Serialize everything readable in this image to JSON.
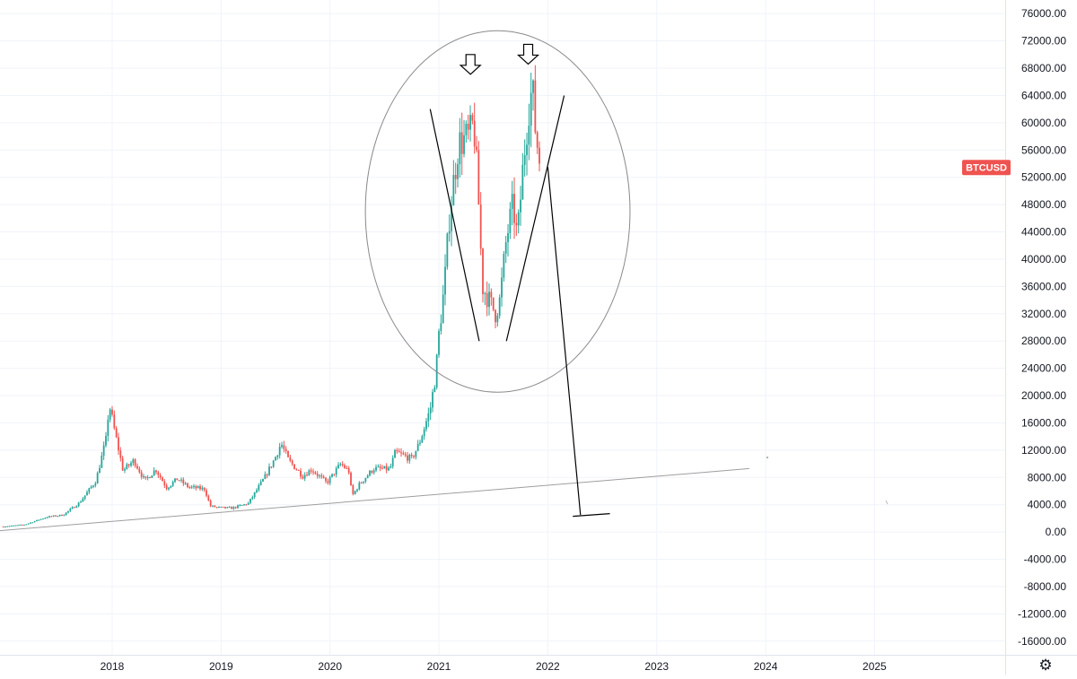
{
  "symbol_badge": {
    "label": "BTCUSD",
    "color": "#ef5350"
  },
  "settings_icon": "gear-icon",
  "colors": {
    "up": "#26a69a",
    "down": "#ef5350",
    "grid": "#f0f3fa",
    "drawing": "#000000",
    "trendline": "#9e9e9e",
    "ellipse": "#8a8a8a",
    "axis_text": "#131722"
  },
  "chart_data": {
    "type": "candlestick",
    "symbol": "BTCUSD",
    "timeframe": "weekly",
    "x_range": [
      2016.97,
      2026.2
    ],
    "y_range": [
      -18000,
      78000
    ],
    "x_ticks": [
      {
        "label": "2018",
        "value": 2018.0
      },
      {
        "label": "2019",
        "value": 2019.0
      },
      {
        "label": "2020",
        "value": 2020.0
      },
      {
        "label": "2021",
        "value": 2021.0
      },
      {
        "label": "2022",
        "value": 2022.0
      },
      {
        "label": "2023",
        "value": 2023.0
      },
      {
        "label": "2024",
        "value": 2024.0
      },
      {
        "label": "2025",
        "value": 2025.0
      }
    ],
    "y_ticks": [
      "76000.00",
      "72000.00",
      "68000.00",
      "64000.00",
      "60000.00",
      "56000.00",
      "52000.00",
      "48000.00",
      "44000.00",
      "40000.00",
      "36000.00",
      "32000.00",
      "28000.00",
      "24000.00",
      "20000.00",
      "16000.00",
      "12000.00",
      "8000.00",
      "4000.00",
      "0.00",
      "-4000.00",
      "-8000.00",
      "-12000.00",
      "-16000.00"
    ],
    "y_tick_values": [
      76000,
      72000,
      68000,
      64000,
      60000,
      56000,
      52000,
      48000,
      44000,
      40000,
      36000,
      32000,
      28000,
      24000,
      20000,
      16000,
      12000,
      8000,
      4000,
      0,
      -4000,
      -8000,
      -12000,
      -16000
    ],
    "last_price": 53500,
    "anchors": [
      [
        2017.0,
        800
      ],
      [
        2017.2,
        1100
      ],
      [
        2017.4,
        2200
      ],
      [
        2017.55,
        2500
      ],
      [
        2017.7,
        4300
      ],
      [
        2017.85,
        7500
      ],
      [
        2017.95,
        14000
      ],
      [
        2017.97,
        19000
      ],
      [
        2018.02,
        15000
      ],
      [
        2018.1,
        9000
      ],
      [
        2018.2,
        10500
      ],
      [
        2018.3,
        7500
      ],
      [
        2018.4,
        9200
      ],
      [
        2018.5,
        6500
      ],
      [
        2018.6,
        7800
      ],
      [
        2018.7,
        6600
      ],
      [
        2018.85,
        6300
      ],
      [
        2018.9,
        3800
      ],
      [
        2018.97,
        3600
      ],
      [
        2019.1,
        3500
      ],
      [
        2019.25,
        4200
      ],
      [
        2019.4,
        8000
      ],
      [
        2019.5,
        11000
      ],
      [
        2019.55,
        13000
      ],
      [
        2019.62,
        10500
      ],
      [
        2019.75,
        8200
      ],
      [
        2019.83,
        9200
      ],
      [
        2019.97,
        7200
      ],
      [
        2020.1,
        10000
      ],
      [
        2020.18,
        8800
      ],
      [
        2020.2,
        5200
      ],
      [
        2020.27,
        7000
      ],
      [
        2020.4,
        9300
      ],
      [
        2020.55,
        9200
      ],
      [
        2020.6,
        11700
      ],
      [
        2020.75,
        10700
      ],
      [
        2020.82,
        13000
      ],
      [
        2020.92,
        18000
      ],
      [
        2020.97,
        23000
      ],
      [
        2021.0,
        29000
      ],
      [
        2021.05,
        36000
      ],
      [
        2021.1,
        47000
      ],
      [
        2021.18,
        57000
      ],
      [
        2021.28,
        58000
      ],
      [
        2021.32,
        60000
      ],
      [
        2021.36,
        50000
      ],
      [
        2021.4,
        36000
      ],
      [
        2021.46,
        34000
      ],
      [
        2021.52,
        32000
      ],
      [
        2021.56,
        34000
      ],
      [
        2021.62,
        43000
      ],
      [
        2021.68,
        48000
      ],
      [
        2021.72,
        43000
      ],
      [
        2021.78,
        55000
      ],
      [
        2021.83,
        63000
      ],
      [
        2021.86,
        65000
      ],
      [
        2021.88,
        60000
      ],
      [
        2021.91,
        56000
      ],
      [
        2021.93,
        54000
      ]
    ],
    "annotations": {
      "ellipse": {
        "cx": 2021.54,
        "cy": 47000,
        "rx": 1.215,
        "ry": 26500
      },
      "w_pattern": [
        [
          2020.92,
          62000
        ],
        [
          2021.37,
          28000
        ],
        [
          2021.62,
          28000
        ],
        [
          2022.15,
          64000
        ]
      ],
      "projection_line": [
        [
          2022.0,
          53500
        ],
        [
          2022.3,
          2500
        ]
      ],
      "projection_base": [
        [
          2022.23,
          2300
        ],
        [
          2022.57,
          2700
        ]
      ],
      "support_trendline": [
        [
          2016.97,
          200
        ],
        [
          2023.85,
          9300
        ]
      ],
      "top_arrows": [
        {
          "x": 2021.29,
          "y": 70000
        },
        {
          "x": 2021.82,
          "y": 71500
        }
      ]
    }
  }
}
